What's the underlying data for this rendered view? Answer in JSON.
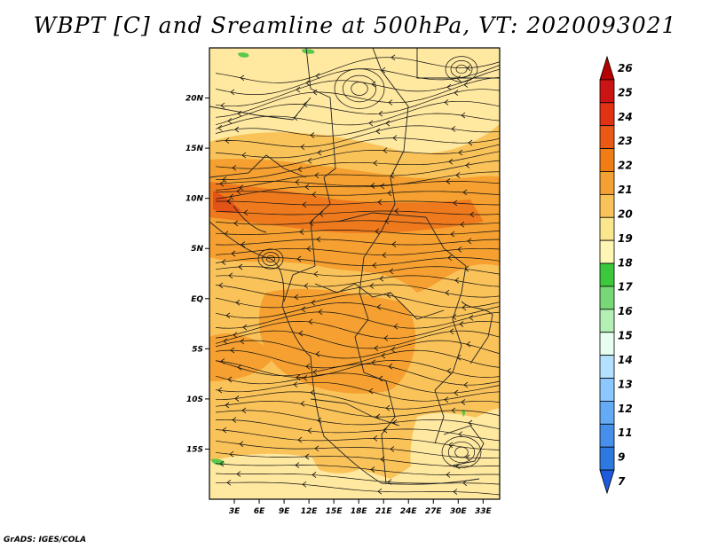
{
  "title": "WBPT [C] and Sreamline at 500hPa, VT: 2020093021",
  "footer": "GrADS: IGES/COLA",
  "map": {
    "lat_range": [
      -20,
      25
    ],
    "lon_range": [
      0,
      35
    ],
    "lat_ticks": [
      {
        "value": 20,
        "label": "20N"
      },
      {
        "value": 15,
        "label": "15N"
      },
      {
        "value": 10,
        "label": "10N"
      },
      {
        "value": 5,
        "label": "5N"
      },
      {
        "value": 0,
        "label": "EQ"
      },
      {
        "value": -5,
        "label": "5S"
      },
      {
        "value": -10,
        "label": "10S"
      },
      {
        "value": -15,
        "label": "15S"
      }
    ],
    "lon_ticks": [
      {
        "value": 3,
        "label": "3E"
      },
      {
        "value": 6,
        "label": "6E"
      },
      {
        "value": 9,
        "label": "9E"
      },
      {
        "value": 12,
        "label": "12E"
      },
      {
        "value": 15,
        "label": "15E"
      },
      {
        "value": 18,
        "label": "18E"
      },
      {
        "value": 21,
        "label": "21E"
      },
      {
        "value": 24,
        "label": "24E"
      },
      {
        "value": 27,
        "label": "27E"
      },
      {
        "value": 30,
        "label": "30E"
      },
      {
        "value": 33,
        "label": "33E"
      }
    ],
    "colors": {
      "base": "#ffe8a0",
      "level20": "#fac35a",
      "level21": "#f5a030",
      "level22": "#ef7a1e",
      "level23": "#e35216",
      "green": "#5ac84a"
    }
  },
  "colorbar": {
    "labels": [
      "26",
      "25",
      "24",
      "23",
      "22",
      "21",
      "20",
      "19",
      "18",
      "17",
      "16",
      "15",
      "14",
      "13",
      "12",
      "11",
      "9",
      "7"
    ],
    "colors": [
      "#b40000",
      "#cd1414",
      "#e13214",
      "#eb5a14",
      "#f07d14",
      "#f5a032",
      "#fac35a",
      "#fae68c",
      "#fff5b4",
      "#3cc83c",
      "#78d878",
      "#b4f0b4",
      "#e6fff0",
      "#b4e0ff",
      "#8cc8ff",
      "#64aaf5",
      "#4690eb",
      "#2d78e1",
      "#1e5adc"
    ]
  }
}
